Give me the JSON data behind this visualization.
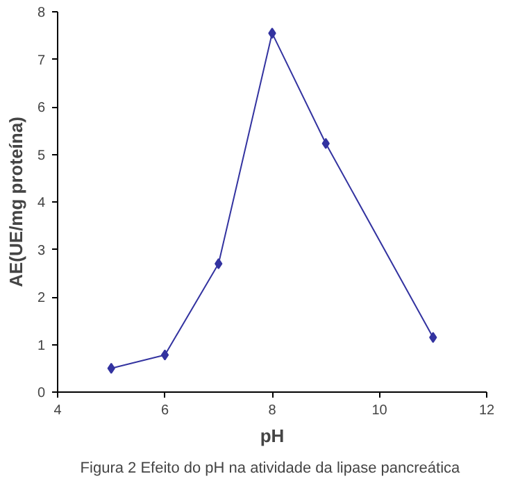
{
  "chart_data": {
    "type": "line",
    "xlabel": "pH",
    "ylabel": "AE(UE/mg proteína)",
    "x": [
      5,
      6,
      7,
      8,
      9,
      11
    ],
    "series": [
      {
        "color": "#3333a0",
        "values": [
          0.5,
          0.78,
          2.7,
          7.55,
          5.23,
          1.15
        ]
      }
    ],
    "xlim": [
      4,
      12
    ],
    "xticks": [
      4,
      6,
      8,
      10,
      12
    ],
    "ylim": [
      0,
      8
    ],
    "yticks": [
      0,
      1,
      2,
      3,
      4,
      5,
      6,
      7,
      8
    ],
    "grid": false,
    "marker": "diamond",
    "line_style": "solid",
    "annotations": [
      "Figura 2 Efeito do pH  na atividade da lipase pancreática"
    ]
  }
}
